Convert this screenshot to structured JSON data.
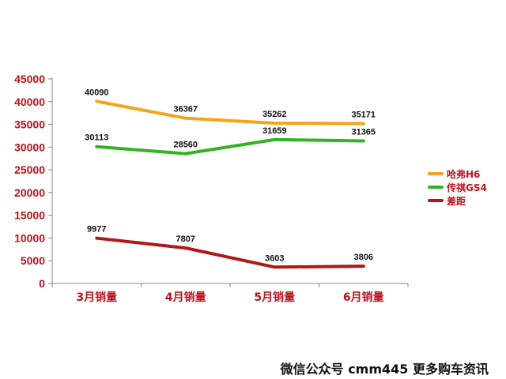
{
  "footer": {
    "text": "微信公众号 cmm445 更多购车资讯"
  },
  "chart_data": {
    "type": "line",
    "categories": [
      "3月销量",
      "4月销量",
      "5月销量",
      "6月销量"
    ],
    "series": [
      {
        "name": "哈弗H6",
        "values": [
          40090,
          36367,
          35262,
          35171
        ],
        "color": "#F2A51A"
      },
      {
        "name": "传祺GS4",
        "values": [
          30113,
          28560,
          31659,
          31365
        ],
        "color": "#2FB51F"
      },
      {
        "name": "差距",
        "values": [
          9977,
          7807,
          3603,
          3806
        ],
        "color": "#B01818"
      }
    ],
    "ylim": [
      0,
      45000
    ],
    "yticks": [
      0,
      5000,
      10000,
      15000,
      20000,
      25000,
      30000,
      35000,
      40000,
      45000
    ],
    "axis_color": "#C0101A",
    "grid": false,
    "legend_position": "right"
  }
}
